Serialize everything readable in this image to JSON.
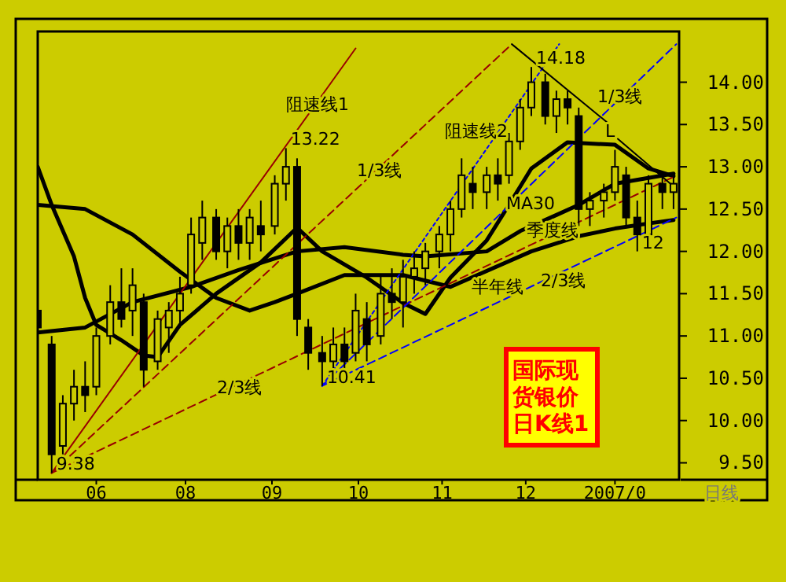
{
  "chart_data": {
    "type": "candlestick",
    "title": "国际现货银价日K线1",
    "xlim": [
      "2006-06-09",
      "2007-01-25"
    ],
    "ylim": [
      9.3,
      14.6
    ],
    "xticks": [
      {
        "value": "2006-06-30",
        "label": "06"
      },
      {
        "value": "2006-08-01",
        "label": "08"
      },
      {
        "value": "2006-09-01",
        "label": "09"
      },
      {
        "value": "2006-10-02",
        "label": "10"
      },
      {
        "value": "2006-11-01",
        "label": "11"
      },
      {
        "value": "2006-12-01",
        "label": "12"
      },
      {
        "value": "2007-01-02",
        "label": "2007/0"
      }
    ],
    "yticks": [
      {
        "value": 9.5,
        "label": "9.50"
      },
      {
        "value": 10,
        "label": "10.00"
      },
      {
        "value": 10.5,
        "label": "10.50"
      },
      {
        "value": 11,
        "label": "11.00"
      },
      {
        "value": 11.5,
        "label": "11.50"
      },
      {
        "value": 12,
        "label": "12.00"
      },
      {
        "value": 12.5,
        "label": "12.50"
      },
      {
        "value": 13,
        "label": "13.00"
      },
      {
        "value": 13.5,
        "label": "13.50"
      },
      {
        "value": 14,
        "label": "14.00"
      }
    ],
    "grid": false,
    "series": [
      {
        "color": "#000000",
        "x": [
          "2006-06-09",
          "2006-06-14",
          "2006-06-18",
          "2006-06-22",
          "2006-06-26",
          "2006-06-30",
          "2006-07-05",
          "2006-07-09",
          "2006-07-13",
          "2006-07-17",
          "2006-07-22",
          "2006-07-26",
          "2006-07-30",
          "2006-08-03",
          "2006-08-07",
          "2006-08-12",
          "2006-08-16",
          "2006-08-20",
          "2006-08-24",
          "2006-08-28",
          "2006-09-02",
          "2006-09-06",
          "2006-09-10",
          "2006-09-14",
          "2006-09-19",
          "2006-09-23",
          "2006-09-27",
          "2006-10-01",
          "2006-10-05",
          "2006-10-10",
          "2006-10-14",
          "2006-10-18",
          "2006-10-22",
          "2006-10-26",
          "2006-10-31",
          "2006-11-04",
          "2006-11-08",
          "2006-11-12",
          "2006-11-17",
          "2006-11-21",
          "2006-11-25",
          "2006-11-29",
          "2006-12-03",
          "2006-12-08",
          "2006-12-12",
          "2006-12-16",
          "2006-12-20",
          "2006-12-24",
          "2006-12-29",
          "2007-01-02",
          "2007-01-06",
          "2007-01-10",
          "2007-01-14",
          "2007-01-19",
          "2007-01-23"
        ],
        "ohlc": [
          [
            11.3,
            11.6,
            11.0,
            11.1
          ],
          [
            10.9,
            11.0,
            9.38,
            9.6
          ],
          [
            9.7,
            10.3,
            9.6,
            10.2
          ],
          [
            10.2,
            10.6,
            10.0,
            10.4
          ],
          [
            10.4,
            10.7,
            10.1,
            10.3
          ],
          [
            10.4,
            11.1,
            10.3,
            11.0
          ],
          [
            11.0,
            11.6,
            10.9,
            11.4
          ],
          [
            11.4,
            11.8,
            11.1,
            11.2
          ],
          [
            11.3,
            11.8,
            11.0,
            11.6
          ],
          [
            11.4,
            11.5,
            10.4,
            10.6
          ],
          [
            10.7,
            11.3,
            10.6,
            11.2
          ],
          [
            11.1,
            11.4,
            10.8,
            11.3
          ],
          [
            11.3,
            11.7,
            11.1,
            11.5
          ],
          [
            11.6,
            12.4,
            11.5,
            12.2
          ],
          [
            12.1,
            12.6,
            11.9,
            12.4
          ],
          [
            12.4,
            12.5,
            11.9,
            12.0
          ],
          [
            12.0,
            12.4,
            11.8,
            12.3
          ],
          [
            12.3,
            12.5,
            11.9,
            12.1
          ],
          [
            12.1,
            12.5,
            11.9,
            12.4
          ],
          [
            12.3,
            12.6,
            12.0,
            12.2
          ],
          [
            12.3,
            12.9,
            12.2,
            12.8
          ],
          [
            12.8,
            13.22,
            12.6,
            13.0
          ],
          [
            13.0,
            13.1,
            11.0,
            11.2
          ],
          [
            11.1,
            11.2,
            10.6,
            10.8
          ],
          [
            10.8,
            11.0,
            10.41,
            10.7
          ],
          [
            10.7,
            11.1,
            10.6,
            10.9
          ],
          [
            10.9,
            11.1,
            10.6,
            10.7
          ],
          [
            10.8,
            11.5,
            10.7,
            11.3
          ],
          [
            11.2,
            11.4,
            10.7,
            10.9
          ],
          [
            11.0,
            11.7,
            10.9,
            11.5
          ],
          [
            11.5,
            11.8,
            11.2,
            11.4
          ],
          [
            11.4,
            11.9,
            11.1,
            11.7
          ],
          [
            11.7,
            12.0,
            11.5,
            11.8
          ],
          [
            11.8,
            12.1,
            11.6,
            12.0
          ],
          [
            12.0,
            12.3,
            11.8,
            12.2
          ],
          [
            12.2,
            12.6,
            12.0,
            12.5
          ],
          [
            12.5,
            13.1,
            12.4,
            12.9
          ],
          [
            12.8,
            13.0,
            12.5,
            12.7
          ],
          [
            12.7,
            13.0,
            12.5,
            12.9
          ],
          [
            12.9,
            13.1,
            12.6,
            12.8
          ],
          [
            12.9,
            13.4,
            12.8,
            13.3
          ],
          [
            13.3,
            13.8,
            13.2,
            13.7
          ],
          [
            13.7,
            14.18,
            13.6,
            14.0
          ],
          [
            14.0,
            14.1,
            13.5,
            13.6
          ],
          [
            13.6,
            13.9,
            13.4,
            13.8
          ],
          [
            13.8,
            13.9,
            13.5,
            13.7
          ],
          [
            13.6,
            13.7,
            12.3,
            12.5
          ],
          [
            12.5,
            12.7,
            12.3,
            12.6
          ],
          [
            12.6,
            12.8,
            12.4,
            12.7
          ],
          [
            12.7,
            13.2,
            12.6,
            13.0
          ],
          [
            12.9,
            13.0,
            12.3,
            12.4
          ],
          [
            12.4,
            12.6,
            12.0,
            12.2
          ],
          [
            12.2,
            12.9,
            12.1,
            12.8
          ],
          [
            12.8,
            12.9,
            12.5,
            12.7
          ],
          [
            12.7,
            12.9,
            12.5,
            12.8
          ]
        ]
      },
      {
        "type": "line",
        "color": "#000000",
        "line_style": "solid",
        "x": [
          "2006-06-09",
          "2006-06-14",
          "2006-06-22",
          "2006-06-26",
          "2006-06-30",
          "2006-07-09",
          "2006-07-17",
          "2006-07-22",
          "2006-07-30",
          "2006-08-12",
          "2006-08-28",
          "2006-09-10",
          "2006-09-19",
          "2006-10-05",
          "2006-10-18",
          "2006-10-26",
          "2006-11-04",
          "2006-11-17",
          "2006-11-25",
          "2006-12-03",
          "2006-12-16",
          "2007-01-02",
          "2007-01-14",
          "2007-01-23"
        ],
        "values": [
          13.0,
          12.55,
          11.94,
          11.45,
          11.13,
          10.95,
          10.77,
          10.75,
          11.13,
          11.5,
          11.87,
          12.28,
          12.0,
          11.69,
          11.39,
          11.26,
          11.69,
          12.13,
          12.55,
          12.98,
          13.29,
          13.26,
          12.98,
          12.89
        ]
      },
      {
        "type": "line",
        "color": "#000000",
        "line_style": "solid",
        "x": [
          "2006-06-09",
          "2006-06-26",
          "2006-07-13",
          "2006-07-30",
          "2006-08-12",
          "2006-08-24",
          "2006-09-02",
          "2006-09-10",
          "2006-09-27",
          "2006-10-18",
          "2006-11-04",
          "2006-12-03",
          "2006-12-20",
          "2007-01-02",
          "2007-01-14",
          "2007-01-23"
        ],
        "values": [
          12.55,
          12.5,
          12.2,
          11.76,
          11.45,
          11.3,
          11.4,
          11.5,
          11.72,
          11.72,
          11.58,
          12.0,
          12.18,
          12.27,
          12.33,
          12.37
        ]
      },
      {
        "type": "line",
        "color": "#000000",
        "line_style": "solid",
        "x": [
          "2006-06-09",
          "2006-06-26",
          "2006-07-13",
          "2006-08-03",
          "2006-08-20",
          "2006-09-10",
          "2006-09-27",
          "2006-10-18",
          "2006-10-26",
          "2006-11-17",
          "2006-11-29",
          "2006-12-12",
          "2006-12-20",
          "2007-01-02",
          "2007-01-23"
        ],
        "values": [
          11.04,
          11.1,
          11.4,
          11.58,
          11.78,
          12.0,
          12.05,
          11.96,
          11.94,
          12.0,
          12.24,
          12.43,
          12.55,
          12.8,
          12.92
        ]
      },
      {
        "type": "line",
        "color": "#990000",
        "line_style": "solid",
        "x": [
          "2006-06-14",
          "2006-10-01"
        ],
        "values": [
          9.38,
          14.4
        ]
      },
      {
        "type": "line",
        "color": "#990000",
        "line_style": "dashed",
        "x": [
          "2006-06-14",
          "2006-11-26"
        ],
        "values": [
          9.38,
          14.45
        ]
      },
      {
        "type": "line",
        "color": "#990000",
        "line_style": "dashed",
        "x": [
          "2006-06-14",
          "2007-01-23"
        ],
        "values": [
          9.38,
          12.88
        ]
      },
      {
        "type": "line",
        "color": "#0000ff",
        "line_style": "dotted",
        "x": [
          "2006-09-19",
          "2006-12-13"
        ],
        "values": [
          10.41,
          14.45
        ]
      },
      {
        "type": "line",
        "color": "#0000ff",
        "line_style": "dashed",
        "x": [
          "2006-09-19",
          "2007-01-24"
        ],
        "values": [
          10.41,
          14.45
        ]
      },
      {
        "type": "line",
        "color": "#0000ff",
        "line_style": "dashed",
        "x": [
          "2006-09-19",
          "2007-01-24"
        ],
        "values": [
          10.41,
          12.4
        ]
      },
      {
        "type": "line",
        "color": "#000000",
        "line_style": "solid",
        "x": [
          "2006-11-26",
          "2006-12-30"
        ],
        "values": [
          14.45,
          13.53
        ]
      },
      {
        "type": "line",
        "color": "#000000",
        "line_style": "solid",
        "x": [
          "2007-01-03",
          "2007-01-24"
        ],
        "values": [
          13.33,
          12.74
        ]
      }
    ],
    "annotations": [
      {
        "text": "14.18",
        "x": "2006-12-03",
        "y": 14.18
      },
      {
        "text": "13.22",
        "x": "2006-09-06",
        "y": 13.22
      },
      {
        "text": "10.41",
        "x": "2006-09-19",
        "y": 10.41
      },
      {
        "text": "9.38",
        "x": "2006-06-14",
        "y": 9.38
      },
      {
        "text": "12",
        "x": "2007-01-10",
        "y": 12.0
      },
      "阻速线1",
      "1/3线",
      "2/3线",
      "阻速线2",
      "1/3线",
      "2/3线",
      "L",
      "MA30",
      "季度线",
      "半年线",
      "日线"
    ]
  }
}
